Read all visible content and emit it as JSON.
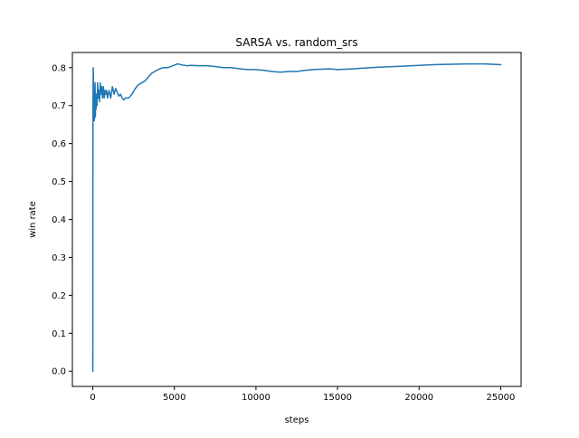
{
  "chart_data": {
    "type": "line",
    "title": "SARSA vs. random_srs",
    "xlabel": "steps",
    "ylabel": "win rate",
    "xlim": [
      -1250,
      26250
    ],
    "ylim": [
      -0.04,
      0.84
    ],
    "xticks": [
      0,
      5000,
      10000,
      15000,
      20000,
      25000
    ],
    "xtick_labels": [
      "0",
      "5000",
      "10000",
      "15000",
      "20000",
      "25000"
    ],
    "yticks": [
      0.0,
      0.1,
      0.2,
      0.3,
      0.4,
      0.5,
      0.6,
      0.7,
      0.8
    ],
    "ytick_labels": [
      "0.0",
      "0.1",
      "0.2",
      "0.3",
      "0.4",
      "0.5",
      "0.6",
      "0.7",
      "0.8"
    ],
    "grid": false,
    "legend": "none",
    "series": [
      {
        "color": "#1f77b4",
        "x": [
          0,
          3,
          6,
          10,
          15,
          20,
          30,
          40,
          50,
          60,
          70,
          80,
          90,
          100,
          120,
          140,
          160,
          180,
          200,
          230,
          260,
          300,
          340,
          380,
          420,
          460,
          500,
          550,
          600,
          650,
          700,
          750,
          800,
          850,
          900,
          950,
          1000,
          1050,
          1100,
          1200,
          1300,
          1400,
          1500,
          1600,
          1700,
          1800,
          1900,
          2000,
          2200,
          2400,
          2600,
          2800,
          3000,
          3200,
          3400,
          3600,
          3800,
          4000,
          4300,
          4600,
          4900,
          5200,
          5500,
          5800,
          6000,
          6500,
          7000,
          7500,
          8000,
          8500,
          9000,
          9500,
          10000,
          10500,
          11000,
          11500,
          12000,
          12500,
          13000,
          13500,
          14000,
          14500,
          15000,
          15500,
          16000,
          17000,
          18000,
          19000,
          20000,
          21000,
          22000,
          23000,
          24000,
          25000
        ],
        "y": [
          0.0,
          0.0,
          0.5,
          0.62,
          0.7,
          0.75,
          0.8,
          0.77,
          0.74,
          0.7,
          0.69,
          0.74,
          0.66,
          0.72,
          0.7,
          0.76,
          0.67,
          0.73,
          0.69,
          0.73,
          0.7,
          0.76,
          0.72,
          0.74,
          0.71,
          0.76,
          0.73,
          0.75,
          0.72,
          0.75,
          0.72,
          0.74,
          0.73,
          0.74,
          0.72,
          0.73,
          0.74,
          0.73,
          0.72,
          0.75,
          0.73,
          0.745,
          0.735,
          0.725,
          0.73,
          0.72,
          0.715,
          0.72,
          0.72,
          0.73,
          0.745,
          0.755,
          0.76,
          0.765,
          0.775,
          0.785,
          0.79,
          0.795,
          0.8,
          0.8,
          0.805,
          0.81,
          0.807,
          0.805,
          0.806,
          0.805,
          0.805,
          0.803,
          0.8,
          0.8,
          0.797,
          0.795,
          0.795,
          0.793,
          0.79,
          0.788,
          0.79,
          0.79,
          0.793,
          0.795,
          0.796,
          0.797,
          0.795,
          0.796,
          0.797,
          0.8,
          0.802,
          0.804,
          0.806,
          0.808,
          0.809,
          0.81,
          0.81,
          0.808
        ]
      }
    ]
  }
}
